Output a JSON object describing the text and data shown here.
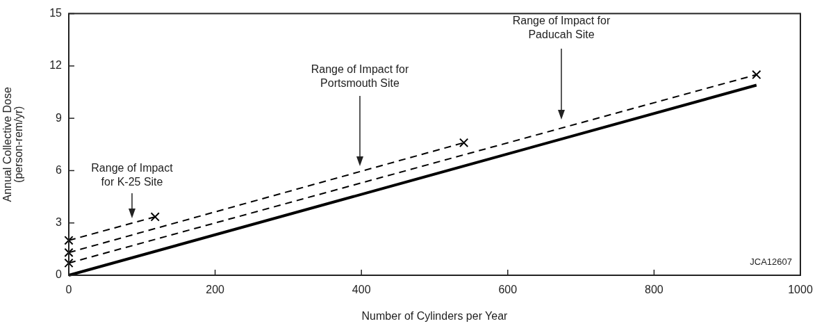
{
  "chart_data": {
    "type": "line",
    "xlabel": "Number of Cylinders per Year",
    "ylabel": "Annual Collective Dose\n(person-rem/yr)",
    "xlim": [
      0,
      1000
    ],
    "xticks": [
      0,
      200,
      400,
      600,
      800,
      1000
    ],
    "ylim": [
      0,
      15
    ],
    "yticks": [
      0,
      3,
      6,
      9,
      12,
      15
    ],
    "grid": false,
    "legend": false,
    "series": [
      {
        "color": "#000000",
        "x": [
          0,
          940
        ],
        "values": [
          0,
          10.9
        ],
        "line_style": "solid",
        "marker": "none"
      },
      {
        "color": "#000000",
        "x": [
          0,
          118
        ],
        "values": [
          2.0,
          3.35
        ],
        "line_style": "dashed",
        "marker": "cross"
      },
      {
        "color": "#000000",
        "x": [
          0,
          540
        ],
        "values": [
          1.3,
          7.6
        ],
        "line_style": "dashed",
        "marker": "cross"
      },
      {
        "color": "#000000",
        "x": [
          0,
          940
        ],
        "values": [
          0.7,
          11.5
        ],
        "line_style": "dashed",
        "marker": "cross"
      }
    ],
    "annotations": [
      "Range of Impact\nfor K-25 Site",
      "Range of Impact for\nPortsmouth Site",
      "Range of Impact for\nPaducah Site",
      "JCA12607"
    ]
  }
}
